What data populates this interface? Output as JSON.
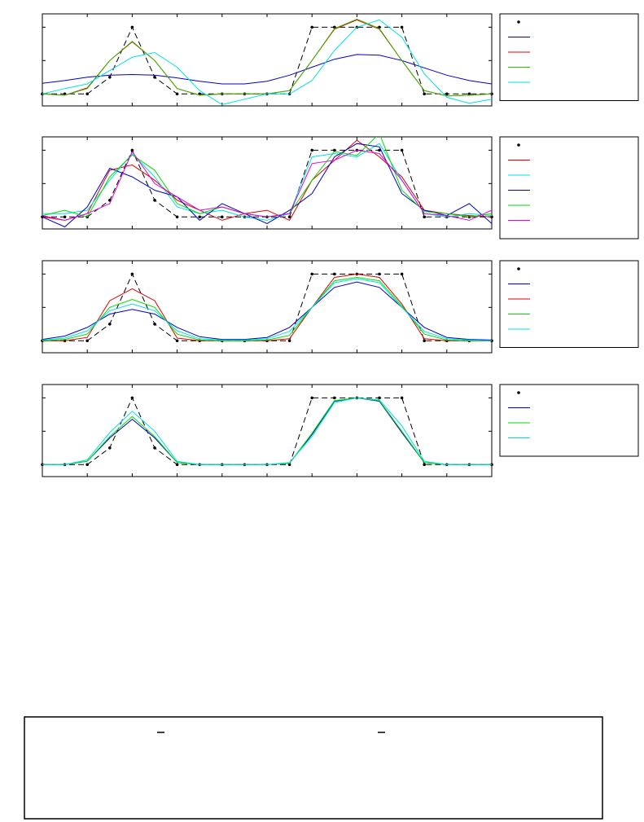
{
  "chart_data": [
    {
      "type": "line",
      "x": [
        0,
        2,
        4,
        6,
        8,
        10,
        12,
        14,
        16,
        18,
        20,
        22,
        24,
        26,
        28,
        30,
        32,
        34,
        36,
        38,
        40
      ],
      "xlim": [
        0,
        40
      ],
      "xticks": [
        0,
        4,
        8,
        12,
        16,
        20,
        24,
        28,
        32,
        36,
        40
      ],
      "ylim": [
        -0.18,
        1.2
      ],
      "yticks": [
        0,
        0.5,
        1
      ],
      "legend": "outside-right",
      "series": [
        {
          "color": "#000000",
          "marker": "dot",
          "dash": true,
          "values": [
            0,
            0,
            0,
            0.25,
            1,
            0.25,
            0,
            0,
            0,
            0,
            0,
            0,
            1,
            1,
            1,
            1,
            1,
            0,
            0,
            0,
            0
          ]
        },
        {
          "color": "#0000cc",
          "values": [
            0.16,
            0.2,
            0.25,
            0.28,
            0.29,
            0.28,
            0.24,
            0.19,
            0.15,
            0.15,
            0.19,
            0.28,
            0.4,
            0.52,
            0.59,
            0.58,
            0.5,
            0.39,
            0.28,
            0.2,
            0.15
          ]
        },
        {
          "color": "#e00000",
          "values": [
            0,
            -0.02,
            0.09,
            0.5,
            0.78,
            0.5,
            0.08,
            -0.02,
            0,
            0,
            0,
            0.05,
            0.5,
            0.97,
            1.11,
            0.97,
            0.5,
            0.05,
            -0.03,
            -0.02,
            0
          ]
        },
        {
          "color": "#33bb00",
          "values": [
            0,
            -0.02,
            0.08,
            0.5,
            0.79,
            0.5,
            0.08,
            -0.02,
            0,
            0,
            0,
            0.05,
            0.5,
            0.98,
            1.12,
            0.98,
            0.5,
            0.05,
            -0.03,
            -0.02,
            0
          ]
        },
        {
          "color": "#00e0e0",
          "values": [
            0,
            0.08,
            0.15,
            0.35,
            0.55,
            0.62,
            0.4,
            0.05,
            -0.16,
            -0.08,
            0,
            0,
            0.2,
            0.65,
            1.0,
            1.11,
            0.85,
            0.3,
            -0.05,
            -0.14,
            -0.08
          ]
        }
      ]
    },
    {
      "type": "line",
      "x": [
        0,
        2,
        4,
        6,
        8,
        10,
        12,
        14,
        16,
        18,
        20,
        22,
        24,
        26,
        28,
        30,
        32,
        34,
        36,
        38,
        40
      ],
      "xlim": [
        0,
        40
      ],
      "xticks": [
        0,
        4,
        8,
        12,
        16,
        20,
        24,
        28,
        32,
        36,
        40
      ],
      "ylim": [
        -0.18,
        1.2
      ],
      "yticks": [
        0,
        0.5,
        1
      ],
      "legend": "outside-right",
      "series": [
        {
          "color": "#000000",
          "marker": "dot",
          "dash": true,
          "values": [
            0,
            0,
            0,
            0.25,
            1,
            0.25,
            0,
            0,
            0,
            0,
            0,
            0,
            1,
            1,
            1,
            1,
            1,
            0,
            0,
            0,
            0
          ]
        },
        {
          "color": "#e00000",
          "values": [
            0,
            -0.05,
            0.05,
            0.7,
            0.78,
            0.55,
            0.25,
            0.1,
            -0.05,
            0.05,
            0.1,
            -0.05,
            0.55,
            0.85,
            1.15,
            0.9,
            0.6,
            0.1,
            0.05,
            0.02,
            0
          ]
        },
        {
          "color": "#00e0e0",
          "values": [
            0.05,
            0.05,
            0.1,
            0.55,
            0.95,
            0.6,
            0.15,
            0.05,
            0.1,
            0,
            -0.05,
            0.05,
            0.9,
            0.95,
            0.9,
            1.1,
            0.55,
            0.05,
            0,
            0.05,
            0.02
          ]
        },
        {
          "color": "#0000cc",
          "values": [
            0,
            -0.15,
            0.15,
            0.73,
            0.6,
            0.4,
            0.3,
            -0.05,
            0.2,
            0.05,
            -0.1,
            0.1,
            0.35,
            0.9,
            1.1,
            1.05,
            0.35,
            0.1,
            0.02,
            0.2,
            -0.1
          ]
        },
        {
          "color": "#00dd00",
          "values": [
            0.02,
            0.1,
            0,
            0.6,
            0.93,
            0.7,
            0.2,
            0.05,
            0.15,
            0.05,
            0,
            0.05,
            0.55,
            0.98,
            0.92,
            1.25,
            0.4,
            0.08,
            0.05,
            0,
            0.05
          ]
        },
        {
          "color": "#e000e0",
          "values": [
            0.02,
            -0.05,
            0.05,
            0.2,
            0.98,
            0.5,
            0.3,
            0.1,
            0.15,
            0.05,
            0,
            0.05,
            0.8,
            0.85,
            1,
            0.95,
            0.55,
            0.05,
            0.02,
            -0.05,
            0.1
          ]
        }
      ]
    },
    {
      "type": "line",
      "x": [
        0,
        2,
        4,
        6,
        8,
        10,
        12,
        14,
        16,
        18,
        20,
        22,
        24,
        26,
        28,
        30,
        32,
        34,
        36,
        38,
        40
      ],
      "xlim": [
        0,
        40
      ],
      "xticks": [
        0,
        4,
        8,
        12,
        16,
        20,
        24,
        28,
        32,
        36,
        40
      ],
      "ylim": [
        -0.18,
        1.2
      ],
      "yticks": [
        0,
        0.5,
        1
      ],
      "legend": "outside-right",
      "series": [
        {
          "color": "#000000",
          "marker": "dot",
          "dash": true,
          "values": [
            0,
            0,
            0,
            0.25,
            1,
            0.25,
            0,
            0,
            0,
            0,
            0,
            0,
            1,
            1,
            1,
            1,
            1,
            0,
            0,
            0,
            0
          ]
        },
        {
          "color": "#0000cc",
          "values": [
            0.02,
            0.07,
            0.2,
            0.4,
            0.47,
            0.4,
            0.2,
            0.06,
            0.02,
            0.02,
            0.05,
            0.2,
            0.5,
            0.8,
            0.88,
            0.8,
            0.5,
            0.2,
            0.05,
            0.02,
            0.01
          ]
        },
        {
          "color": "#e00000",
          "values": [
            0,
            0,
            0.05,
            0.6,
            0.78,
            0.6,
            0.04,
            0,
            0,
            0,
            0,
            0.03,
            0.5,
            0.95,
            1,
            0.95,
            0.55,
            0.03,
            0,
            0,
            0
          ]
        },
        {
          "color": "#00dd00",
          "values": [
            0,
            0.02,
            0.1,
            0.5,
            0.62,
            0.5,
            0.1,
            0.01,
            0,
            0,
            0.01,
            0.08,
            0.5,
            0.9,
            0.95,
            0.9,
            0.52,
            0.1,
            0.01,
            0,
            0
          ]
        },
        {
          "color": "#00e0e0",
          "values": [
            0.01,
            0.04,
            0.15,
            0.45,
            0.55,
            0.45,
            0.15,
            0.03,
            0.01,
            0.01,
            0.03,
            0.14,
            0.5,
            0.87,
            0.93,
            0.87,
            0.5,
            0.14,
            0.03,
            0.01,
            0
          ]
        }
      ]
    },
    {
      "type": "line",
      "x": [
        0,
        2,
        4,
        6,
        8,
        10,
        12,
        14,
        16,
        18,
        20,
        22,
        24,
        26,
        28,
        30,
        32,
        34,
        36,
        38,
        40
      ],
      "xlim": [
        0,
        40
      ],
      "xticks": [
        0,
        4,
        8,
        12,
        16,
        20,
        24,
        28,
        32,
        36,
        40
      ],
      "ylim": [
        -0.18,
        1.2
      ],
      "yticks": [
        0,
        0.5,
        1
      ],
      "legend": "outside-right",
      "series": [
        {
          "color": "#000000",
          "marker": "dot",
          "dash": true,
          "values": [
            0,
            0,
            0,
            0.25,
            1,
            0.25,
            0,
            0,
            0,
            0,
            0,
            0,
            1,
            1,
            1,
            1,
            1,
            0,
            0,
            0,
            0
          ]
        },
        {
          "color": "#0000cc",
          "values": [
            0,
            0,
            0.05,
            0.4,
            0.68,
            0.4,
            0.03,
            0,
            0,
            0,
            0,
            0.02,
            0.45,
            0.95,
            1,
            0.95,
            0.48,
            0.03,
            0,
            0,
            0
          ]
        },
        {
          "color": "#00dd00",
          "values": [
            0,
            0,
            0.05,
            0.42,
            0.72,
            0.42,
            0.03,
            0,
            0,
            0,
            0,
            0.02,
            0.47,
            0.96,
            1,
            0.96,
            0.5,
            0.03,
            0,
            0,
            0
          ]
        },
        {
          "color": "#00e0e0",
          "values": [
            0,
            0,
            0.07,
            0.48,
            0.8,
            0.5,
            0.05,
            0,
            0,
            0,
            0,
            0.03,
            0.42,
            0.93,
            1,
            0.97,
            0.58,
            0.05,
            0,
            0,
            0
          ]
        }
      ]
    }
  ]
}
